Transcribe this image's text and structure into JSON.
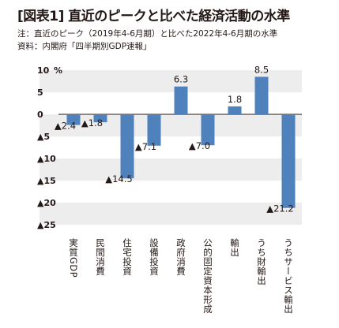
{
  "header": {
    "title": "[図表1] 直近のピークと比べた経済活動の水準",
    "note": "注：直近のピーク（2019年4-6月期）と比べた2022年4-6月期の水準",
    "source": "資料：内閣府「四半期別GDP速報」"
  },
  "axis_unit": "%",
  "chart_data": {
    "type": "bar",
    "title": "[図表1] 直近のピークと比べた経済活動の水準",
    "categories": [
      "実質GDP",
      "民間消費",
      "住宅投資",
      "設備投資",
      "政府消費",
      "公的固定資本形成",
      "輸出",
      "うち財輸出",
      "うちサービス輸出"
    ],
    "values": [
      -2.4,
      -1.8,
      -14.5,
      -7.1,
      6.3,
      -7.0,
      1.8,
      8.5,
      -21.2
    ],
    "value_labels": [
      "▲2.4",
      "▲1.8",
      "▲14.5",
      "▲7.1",
      "6.3",
      "▲7.0",
      "1.8",
      "8.5",
      "▲21.2"
    ],
    "yticks": [
      10,
      5,
      0,
      -5,
      -10,
      -15,
      -20,
      -25
    ],
    "ytick_labels": [
      "10",
      "5",
      "0",
      "▲5",
      "▲10",
      "▲15",
      "▲20",
      "▲25"
    ],
    "ylim": [
      -25,
      10
    ],
    "xlabel": "",
    "ylabel": "",
    "grid": true,
    "bar_color": "#4f81bd",
    "band_color": "#ededed"
  }
}
